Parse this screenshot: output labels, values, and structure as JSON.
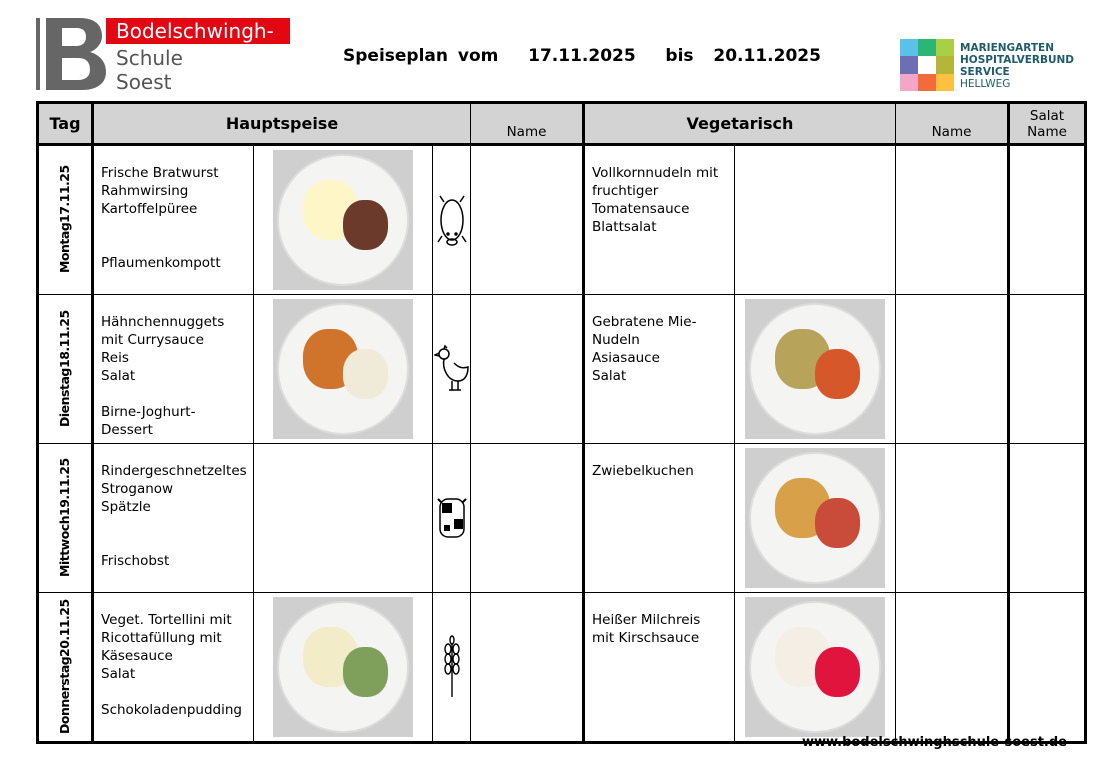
{
  "logo": {
    "name_line1": "Bodelschwingh-",
    "name_line2": "Schule",
    "name_line3": "Soest"
  },
  "title": "Speiseplan vom   17.11.2025   bis  20.11.2025",
  "partner_logo": {
    "lines": [
      "MARIENGARTEN",
      "HOSPITALVERBUND",
      "SERVICE",
      "HELLWEG"
    ]
  },
  "headers": {
    "tag": "Tag",
    "main": "Hauptspeise",
    "main_name": "Name",
    "veg": "Vegetarisch",
    "veg_name": "Name",
    "salad": "Salat\nName"
  },
  "days": [
    {
      "day": "Montag",
      "date": "17.11.25",
      "main": "Frische Bratwurst\nRahmwirsing\nKartoffelpüree\n\n\nPflaumenkompott",
      "main_photo": true,
      "icon": "pig-icon",
      "veg": "Vollkornnudeln mit\nfruchtiger\nTomatensauce\nBlattsalat",
      "veg_photo": false
    },
    {
      "day": "Dienstag",
      "date": "18.11.25",
      "main": "Hähnchennuggets\nmit Currysauce\nReis\nSalat\n\nBirne-Joghurt-Dessert",
      "main_photo": true,
      "icon": "chicken-icon",
      "veg": "Gebratene Mie-\nNudeln\nAsiasauce\nSalat",
      "veg_photo": true
    },
    {
      "day": "Mittwoch",
      "date": "19.11.25",
      "main": "Rindergeschnetzeltes\nStroganow\nSpätzle\n\n\nFrischobst",
      "main_photo": false,
      "icon": "cow-icon",
      "veg": "Zwiebelkuchen",
      "veg_photo": true
    },
    {
      "day": "Donnerstag",
      "date": "20.11.25",
      "main": "Veget. Tortellini mit\nRicottafüllung mit\nKäsesauce\nSalat\n\nSchokoladenpudding",
      "main_photo": true,
      "icon": "wheat-icon",
      "veg": "Heißer Milchreis\nmit Kirschsauce",
      "veg_photo": true
    }
  ],
  "footer": "www.bodelschwinghschule-soest.de",
  "colors": {
    "brand_red": "#e30613",
    "header_gray": "#d4d3d4"
  }
}
